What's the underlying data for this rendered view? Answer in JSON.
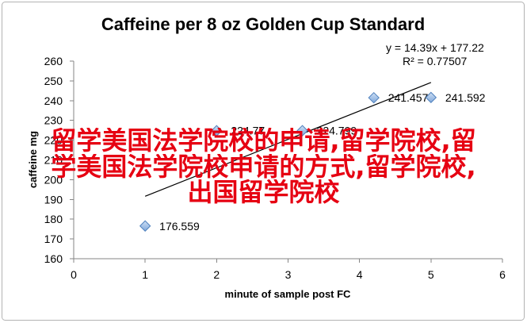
{
  "chart_data": {
    "type": "scatter",
    "title": "Caffeine per 8 oz Golden Cup Standard",
    "xlabel": "minute of sample post FC",
    "ylabel": "caffeine mg",
    "xlim": [
      0,
      6
    ],
    "ylim": [
      160,
      260
    ],
    "xticks": [
      "0",
      "1",
      "2",
      "3",
      "4",
      "5",
      "6"
    ],
    "yticks": [
      "160",
      "170",
      "180",
      "190",
      "200",
      "210",
      "220",
      "230",
      "240",
      "250",
      "260"
    ],
    "grid": false,
    "series": [
      {
        "points": [
          {
            "x": 1,
            "y": 176.559,
            "label": "176.559"
          },
          {
            "x": 2,
            "y": 224.77,
            "label": "224.77"
          },
          {
            "x": 3.2,
            "y": 224.799,
            "label": "224.799"
          },
          {
            "x": 4.2,
            "y": 241.457,
            "label": "241.457"
          },
          {
            "x": 5,
            "y": 241.592,
            "label": "241.592"
          }
        ]
      }
    ],
    "trendline": {
      "slope": 14.39,
      "intercept": 177.22,
      "equation": "y = 14.39x + 177.22",
      "r_squared": "R² = 0.77507"
    },
    "colors": {
      "marker_fill_light": "#cfe0f5",
      "marker_fill_dark": "#7fa7da",
      "marker_border": "#4f81bd",
      "trendline": "#000000"
    }
  },
  "overlay_text": {
    "color": "#e60012",
    "lines": [
      "留学美国法学院校的申请,留学院校,留",
      "学美国法学院校申请的方式,留学院校,",
      "出国留学院校"
    ]
  }
}
